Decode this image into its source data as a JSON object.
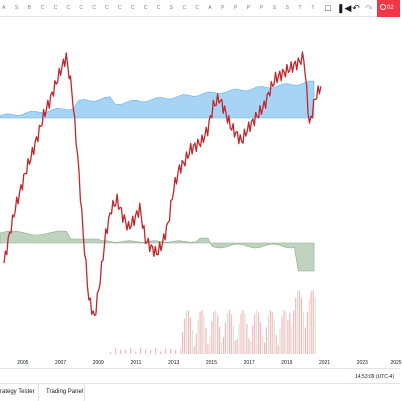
{
  "toolbar": {
    "letters": [
      "A",
      "S",
      "B",
      "C",
      "C",
      "C",
      "C",
      "C",
      "C",
      "C",
      "C",
      "C",
      "C",
      "S",
      "C",
      "C",
      "A",
      "P",
      "P",
      "P",
      "P",
      "S",
      "S",
      "T",
      "T"
    ],
    "undo_icon": "undo-icon",
    "replay_icon": "replay-icon",
    "screenshot_icon": "screenshot-icon",
    "record_label": "02"
  },
  "chart": {
    "colors": {
      "price_line": "#c1272d",
      "area_fill": "#a7d3f5",
      "area_edge": "#6fb0e8",
      "histogram_fill": "#bfd3bf",
      "histogram_edge": "#8fa98f",
      "volume_red": "#f5b7bd",
      "volume_green": "#cfe8cf"
    },
    "x_labels": [
      "2005",
      "2007",
      "2009",
      "2011",
      "2013",
      "2015",
      "2017",
      "2019",
      "2021",
      "2023",
      "2025"
    ]
  },
  "chart_data": {
    "type": "line",
    "title": "",
    "series": [
      {
        "x": [
          2004.0,
          2004.3,
          2004.6,
          2004.9,
          2005.2,
          2005.5,
          2005.8,
          2006.1,
          2006.4,
          2006.7,
          2007.0,
          2007.3,
          2007.6,
          2007.9,
          2008.2,
          2008.5,
          2008.8,
          2009.1,
          2009.4,
          2009.7,
          2010.0,
          2010.3,
          2010.6,
          2010.9,
          2011.2,
          2011.5,
          2011.8,
          2012.1,
          2012.4,
          2012.7,
          2013.0,
          2013.3,
          2013.6,
          2013.9,
          2014.2,
          2014.5,
          2014.8,
          2015.1,
          2015.4,
          2015.7,
          2016.0,
          2016.3,
          2016.6,
          2016.9,
          2017.2,
          2017.5,
          2017.8,
          2018.1,
          2018.4,
          2018.7,
          2019.0,
          2019.3,
          2019.6,
          2019.9,
          2020.2,
          2020.5,
          2020.8
        ],
        "values": [
          -10,
          5,
          18,
          28,
          38,
          46,
          55,
          65,
          72,
          80,
          88,
          95,
          78,
          45,
          5,
          -28,
          -38,
          -18,
          5,
          18,
          22,
          14,
          8,
          12,
          18,
          2,
          -2,
          -5,
          0,
          10,
          28,
          38,
          42,
          48,
          50,
          52,
          58,
          70,
          74,
          68,
          60,
          56,
          52,
          58,
          62,
          66,
          70,
          78,
          84,
          86,
          88,
          90,
          92,
          95,
          60,
          74,
          80
        ]
      }
    ],
    "xlim": [
      2004,
      2025
    ],
    "grid": false
  },
  "status": {
    "clock": "14:53:09 (UTC-4)"
  },
  "bottom_tabs": {
    "strategy_tester": "rategy Tester",
    "trading_panel": "Trading Panel"
  }
}
